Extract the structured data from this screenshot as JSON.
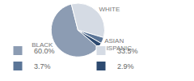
{
  "chart_data": {
    "type": "pie",
    "categories": [
      "BLACK",
      "WHITE",
      "ASIAN",
      "HISPANIC"
    ],
    "values": [
      60.0,
      33.5,
      3.7,
      2.9
    ],
    "value_labels": [
      "60.0%",
      "33.5%",
      "3.7%",
      "2.9%"
    ],
    "colors": [
      "#8c9cb3",
      "#d5dbe4",
      "#5b7597",
      "#2d4a70"
    ],
    "legend": "bottom"
  }
}
